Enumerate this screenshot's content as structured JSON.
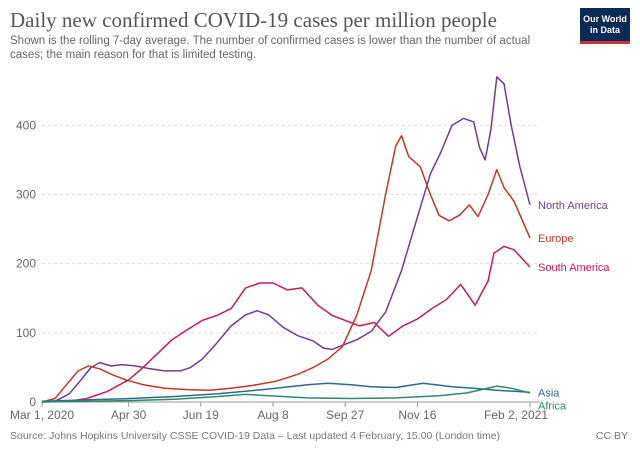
{
  "header": {
    "title": "Daily new confirmed COVID-19 cases per million people",
    "subtitle": "Shown is the rolling 7-day average. The number of confirmed cases is lower than the number of actual cases; the main reason for that is limited testing.",
    "logo_line1": "Our World",
    "logo_line2": "in Data"
  },
  "footer": {
    "source": "Source: Johns Hopkins University CSSE COVID-19 Data – Last updated 4 February, 15:00 (London time)",
    "license": "CC BY"
  },
  "chart_data": {
    "type": "line",
    "title": "Daily new confirmed COVID-19 cases per million people",
    "xlabel": "",
    "ylabel": "",
    "x_unit": "date",
    "x_range": [
      "2020-03-01",
      "2021-02-02"
    ],
    "ylim": [
      0,
      480
    ],
    "y_ticks": [
      0,
      100,
      200,
      300,
      400
    ],
    "x_ticks": [
      {
        "date": "2020-03-01",
        "label": "Mar 1, 2020"
      },
      {
        "date": "2020-04-30",
        "label": "Apr 30"
      },
      {
        "date": "2020-06-19",
        "label": "Jun 19"
      },
      {
        "date": "2020-08-08",
        "label": "Aug 8"
      },
      {
        "date": "2020-09-27",
        "label": "Sep 27"
      },
      {
        "date": "2020-11-16",
        "label": "Nov 16"
      },
      {
        "date": "2021-02-02",
        "label": "Feb 2, 2021"
      }
    ],
    "grid": "horizontal dashed",
    "legend": "line-end labels",
    "series": [
      {
        "name": "North America",
        "color": "#6d3e91",
        "points": [
          [
            "2020-03-01",
            0
          ],
          [
            "2020-03-10",
            1
          ],
          [
            "2020-03-20",
            12
          ],
          [
            "2020-03-28",
            32
          ],
          [
            "2020-04-04",
            50
          ],
          [
            "2020-04-10",
            57
          ],
          [
            "2020-04-18",
            52
          ],
          [
            "2020-04-25",
            54
          ],
          [
            "2020-05-05",
            52
          ],
          [
            "2020-05-15",
            48
          ],
          [
            "2020-05-25",
            45
          ],
          [
            "2020-06-05",
            45
          ],
          [
            "2020-06-12",
            50
          ],
          [
            "2020-06-20",
            62
          ],
          [
            "2020-06-30",
            85
          ],
          [
            "2020-07-10",
            110
          ],
          [
            "2020-07-20",
            126
          ],
          [
            "2020-07-28",
            132
          ],
          [
            "2020-08-05",
            126
          ],
          [
            "2020-08-15",
            108
          ],
          [
            "2020-08-25",
            96
          ],
          [
            "2020-09-05",
            88
          ],
          [
            "2020-09-12",
            78
          ],
          [
            "2020-09-18",
            76
          ],
          [
            "2020-09-25",
            82
          ],
          [
            "2020-10-05",
            90
          ],
          [
            "2020-10-15",
            102
          ],
          [
            "2020-10-25",
            130
          ],
          [
            "2020-11-05",
            190
          ],
          [
            "2020-11-15",
            260
          ],
          [
            "2020-11-25",
            330
          ],
          [
            "2020-12-02",
            360
          ],
          [
            "2020-12-10",
            400
          ],
          [
            "2020-12-18",
            410
          ],
          [
            "2020-12-25",
            405
          ],
          [
            "2020-12-29",
            368
          ],
          [
            "2021-01-02",
            350
          ],
          [
            "2021-01-06",
            395
          ],
          [
            "2021-01-10",
            470
          ],
          [
            "2021-01-15",
            460
          ],
          [
            "2021-01-20",
            400
          ],
          [
            "2021-01-26",
            340
          ],
          [
            "2021-02-02",
            285
          ]
        ]
      },
      {
        "name": "Europe",
        "color": "#c0392b",
        "points": [
          [
            "2020-03-01",
            0
          ],
          [
            "2020-03-10",
            5
          ],
          [
            "2020-03-18",
            25
          ],
          [
            "2020-03-26",
            45
          ],
          [
            "2020-04-02",
            52
          ],
          [
            "2020-04-10",
            48
          ],
          [
            "2020-04-18",
            40
          ],
          [
            "2020-04-28",
            32
          ],
          [
            "2020-05-10",
            25
          ],
          [
            "2020-05-25",
            20
          ],
          [
            "2020-06-10",
            18
          ],
          [
            "2020-06-25",
            17
          ],
          [
            "2020-07-10",
            20
          ],
          [
            "2020-07-25",
            24
          ],
          [
            "2020-08-10",
            30
          ],
          [
            "2020-08-25",
            40
          ],
          [
            "2020-09-05",
            50
          ],
          [
            "2020-09-15",
            62
          ],
          [
            "2020-09-25",
            80
          ],
          [
            "2020-10-05",
            125
          ],
          [
            "2020-10-15",
            190
          ],
          [
            "2020-10-25",
            300
          ],
          [
            "2020-11-01",
            370
          ],
          [
            "2020-11-05",
            385
          ],
          [
            "2020-11-10",
            355
          ],
          [
            "2020-11-18",
            340
          ],
          [
            "2020-11-25",
            300
          ],
          [
            "2020-12-01",
            270
          ],
          [
            "2020-12-08",
            262
          ],
          [
            "2020-12-15",
            270
          ],
          [
            "2020-12-22",
            285
          ],
          [
            "2020-12-28",
            268
          ],
          [
            "2021-01-04",
            300
          ],
          [
            "2021-01-10",
            336
          ],
          [
            "2021-01-15",
            310
          ],
          [
            "2021-01-22",
            290
          ],
          [
            "2021-02-02",
            237
          ]
        ]
      },
      {
        "name": "South America",
        "color": "#c81b5a",
        "points": [
          [
            "2020-03-01",
            0
          ],
          [
            "2020-03-20",
            1
          ],
          [
            "2020-04-01",
            5
          ],
          [
            "2020-04-15",
            15
          ],
          [
            "2020-04-30",
            32
          ],
          [
            "2020-05-10",
            50
          ],
          [
            "2020-05-20",
            70
          ],
          [
            "2020-05-30",
            90
          ],
          [
            "2020-06-10",
            105
          ],
          [
            "2020-06-20",
            118
          ],
          [
            "2020-06-30",
            125
          ],
          [
            "2020-07-10",
            135
          ],
          [
            "2020-07-20",
            165
          ],
          [
            "2020-07-30",
            172
          ],
          [
            "2020-08-08",
            172
          ],
          [
            "2020-08-18",
            162
          ],
          [
            "2020-08-28",
            165
          ],
          [
            "2020-09-08",
            140
          ],
          [
            "2020-09-18",
            125
          ],
          [
            "2020-09-27",
            118
          ],
          [
            "2020-10-07",
            110
          ],
          [
            "2020-10-17",
            115
          ],
          [
            "2020-10-27",
            95
          ],
          [
            "2020-11-06",
            110
          ],
          [
            "2020-11-16",
            120
          ],
          [
            "2020-11-26",
            135
          ],
          [
            "2020-12-06",
            148
          ],
          [
            "2020-12-16",
            170
          ],
          [
            "2020-12-26",
            140
          ],
          [
            "2021-01-04",
            175
          ],
          [
            "2021-01-08",
            215
          ],
          [
            "2021-01-15",
            225
          ],
          [
            "2021-01-22",
            220
          ],
          [
            "2021-02-02",
            195
          ]
        ]
      },
      {
        "name": "Asia",
        "color": "#2c6c86",
        "points": [
          [
            "2020-03-01",
            1
          ],
          [
            "2020-04-01",
            3
          ],
          [
            "2020-05-01",
            5
          ],
          [
            "2020-06-01",
            8
          ],
          [
            "2020-07-01",
            12
          ],
          [
            "2020-08-01",
            18
          ],
          [
            "2020-09-01",
            25
          ],
          [
            "2020-09-15",
            27
          ],
          [
            "2020-10-01",
            25
          ],
          [
            "2020-10-15",
            22
          ],
          [
            "2020-11-01",
            21
          ],
          [
            "2020-11-20",
            27
          ],
          [
            "2020-12-10",
            22
          ],
          [
            "2020-12-25",
            20
          ],
          [
            "2021-01-10",
            17
          ],
          [
            "2021-02-02",
            14
          ]
        ]
      },
      {
        "name": "Africa",
        "color": "#2d8a6b",
        "points": [
          [
            "2020-03-01",
            0
          ],
          [
            "2020-04-01",
            1
          ],
          [
            "2020-05-01",
            2
          ],
          [
            "2020-06-01",
            4
          ],
          [
            "2020-07-01",
            8
          ],
          [
            "2020-07-20",
            11
          ],
          [
            "2020-08-05",
            9
          ],
          [
            "2020-09-01",
            6
          ],
          [
            "2020-10-01",
            5
          ],
          [
            "2020-11-01",
            6
          ],
          [
            "2020-12-01",
            9
          ],
          [
            "2020-12-20",
            13
          ],
          [
            "2021-01-10",
            23
          ],
          [
            "2021-01-20",
            20
          ],
          [
            "2021-02-02",
            13
          ]
        ]
      }
    ]
  }
}
